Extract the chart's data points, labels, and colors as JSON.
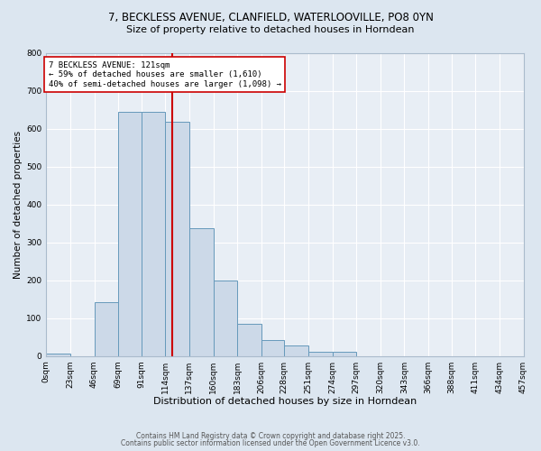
{
  "title_line1": "7, BECKLESS AVENUE, CLANFIELD, WATERLOOVILLE, PO8 0YN",
  "title_line2": "Size of property relative to detached houses in Horndean",
  "xlabel": "Distribution of detached houses by size in Horndean",
  "ylabel": "Number of detached properties",
  "bin_edges": [
    0,
    23,
    46,
    69,
    91,
    114,
    137,
    160,
    183,
    206,
    228,
    251,
    274,
    297,
    320,
    343,
    366,
    388,
    411,
    434,
    457
  ],
  "bin_heights": [
    5,
    0,
    143,
    643,
    643,
    617,
    338,
    198,
    85,
    42,
    28,
    10,
    10,
    0,
    0,
    0,
    0,
    0,
    0,
    0
  ],
  "bar_facecolor": "#ccd9e8",
  "bar_edgecolor": "#6699bb",
  "vline_x": 121,
  "vline_color": "#cc0000",
  "annotation_text": "7 BECKLESS AVENUE: 121sqm\n← 59% of detached houses are smaller (1,610)\n40% of semi-detached houses are larger (1,098) →",
  "annotation_box_edgecolor": "#cc0000",
  "annotation_box_facecolor": "#ffffff",
  "ylim": [
    0,
    800
  ],
  "yticks": [
    0,
    100,
    200,
    300,
    400,
    500,
    600,
    700,
    800
  ],
  "bg_color": "#dce6f0",
  "plot_bg_color": "#e8eef5",
  "footer_line1": "Contains HM Land Registry data © Crown copyright and database right 2025.",
  "footer_line2": "Contains public sector information licensed under the Open Government Licence v3.0.",
  "tick_labels": [
    "0sqm",
    "23sqm",
    "46sqm",
    "69sqm",
    "91sqm",
    "114sqm",
    "137sqm",
    "160sqm",
    "183sqm",
    "206sqm",
    "228sqm",
    "251sqm",
    "274sqm",
    "297sqm",
    "320sqm",
    "343sqm",
    "366sqm",
    "388sqm",
    "411sqm",
    "434sqm",
    "457sqm"
  ]
}
